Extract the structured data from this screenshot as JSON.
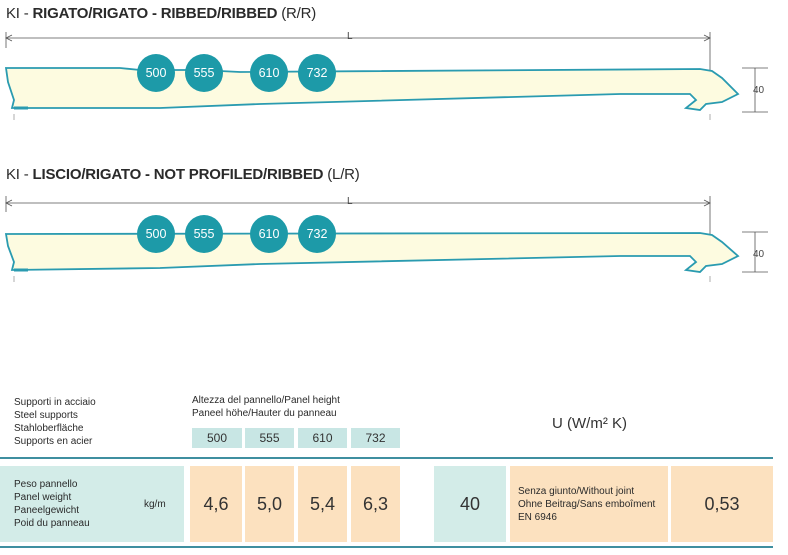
{
  "panels": [
    {
      "prefix": "KI - ",
      "bold": "RIGATO/RIGATO - RIBBED/RIBBED",
      "suffix": " (R/R)",
      "length_label": "L",
      "thickness_label": "40",
      "badges": [
        "500",
        "555",
        "610",
        "732"
      ]
    },
    {
      "prefix": "KI - ",
      "bold": "LISCIO/RIGATO - NOT PROFILED/RIBBED",
      "suffix": " (L/R)",
      "length_label": "L",
      "thickness_label": "40",
      "badges": [
        "500",
        "555",
        "610",
        "732"
      ]
    }
  ],
  "table": {
    "supports_lines": [
      "Supporti in acciaio",
      "Steel supports",
      "Stahloberfläche",
      "Supports en acier"
    ],
    "height_lines": [
      "Altezza del pannello/Panel height",
      "Paneel höhe/Hauter du panneau"
    ],
    "heights": [
      "500",
      "555",
      "610",
      "732"
    ],
    "u_header": "U (W/m² K)",
    "weight_lines": [
      "Peso pannello",
      "Panel weight",
      "Paneelgewicht",
      "Poid du panneau"
    ],
    "unit": "kg/m",
    "weights": [
      "4,6",
      "5,0",
      "5,4",
      "6,3"
    ],
    "thickness": "40",
    "joint_lines": [
      "Senza giunto/Without joint",
      "Ohne Beitrag/Sans emboîment",
      "EN 6946"
    ],
    "u_value": "0,53"
  },
  "colors": {
    "teal_badge": "#1d9aa8",
    "panel_fill": "#fdfbe0",
    "panel_stroke": "#2a9bb0",
    "teal_cell": "#d3ece8",
    "peach_cell": "#fce1bf"
  }
}
